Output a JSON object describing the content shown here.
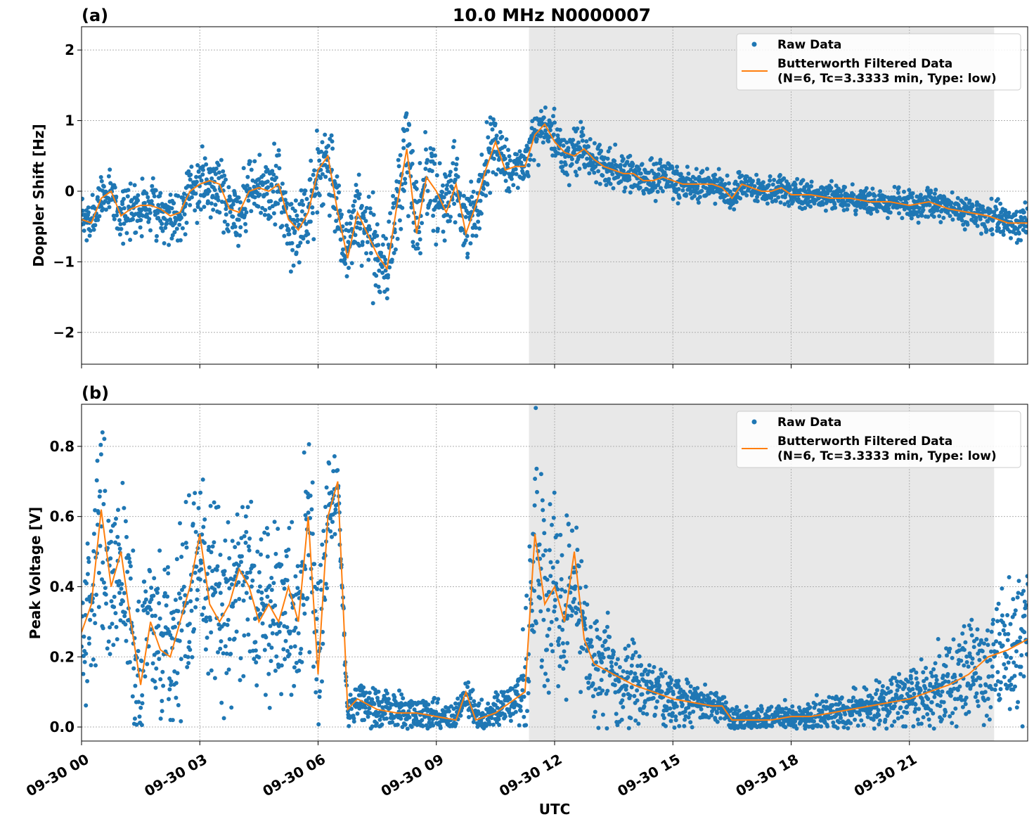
{
  "figure": {
    "title": "10.0 MHz N0000007",
    "xlabel": "UTC",
    "x_unit": "hours since 09-30 00:00 UTC",
    "xlim": [
      0,
      24
    ],
    "xticks": [
      {
        "value": 0,
        "label": "09-30 00"
      },
      {
        "value": 3,
        "label": "09-30 03"
      },
      {
        "value": 6,
        "label": "09-30 06"
      },
      {
        "value": 9,
        "label": "09-30 09"
      },
      {
        "value": 12,
        "label": "09-30 12"
      },
      {
        "value": 15,
        "label": "09-30 15"
      },
      {
        "value": 18,
        "label": "09-30 18"
      },
      {
        "value": 21,
        "label": "09-30 21"
      }
    ],
    "shaded_region": {
      "x_start": 11.35,
      "x_end": 23.15,
      "color": "#e8e8e8"
    },
    "colors": {
      "raw": "#1f77b4",
      "filtered": "#ff7f0e"
    },
    "legend": {
      "raw_label": "Raw Data",
      "filtered_label_line1": "Butterworth Filtered Data",
      "filtered_label_line2": "(N=6, Tc=3.3333 min, Type: low)",
      "placement": "upper-right"
    }
  },
  "chart_data": [
    {
      "type": "scatter",
      "panel_label": "(a)",
      "ylabel": "Doppler Shift [Hz]",
      "ylim": [
        -2.45,
        2.33
      ],
      "yticks": [
        {
          "value": -2,
          "label": "−2"
        },
        {
          "value": -1,
          "label": "−1"
        },
        {
          "value": 0,
          "label": "0"
        },
        {
          "value": 1,
          "label": "1"
        },
        {
          "value": 2,
          "label": "2"
        }
      ],
      "grid": true,
      "series": [
        {
          "name": "Butterworth Filtered Data",
          "kind": "line",
          "x": [
            0,
            0.25,
            0.5,
            0.75,
            1.0,
            1.25,
            1.5,
            1.75,
            2.0,
            2.25,
            2.5,
            2.75,
            3.0,
            3.25,
            3.5,
            3.75,
            4.0,
            4.25,
            4.5,
            4.75,
            5.0,
            5.25,
            5.5,
            5.75,
            6.0,
            6.25,
            6.5,
            6.75,
            7.0,
            7.25,
            7.5,
            7.75,
            8.0,
            8.25,
            8.5,
            8.75,
            9.0,
            9.25,
            9.5,
            9.75,
            10.0,
            10.25,
            10.5,
            10.75,
            11.0,
            11.25,
            11.5,
            11.75,
            12.0,
            12.25,
            12.5,
            12.75,
            13.0,
            13.25,
            13.5,
            13.75,
            14.0,
            14.25,
            14.5,
            14.75,
            15.0,
            15.25,
            15.5,
            15.75,
            16.0,
            16.25,
            16.5,
            16.75,
            17.0,
            17.25,
            17.5,
            17.75,
            18.0,
            18.5,
            19.0,
            19.5,
            20.0,
            20.5,
            21.0,
            21.5,
            22.0,
            22.5,
            23.0,
            23.5,
            24.0
          ],
          "y": [
            -0.4,
            -0.45,
            -0.1,
            0.0,
            -0.35,
            -0.25,
            -0.2,
            -0.2,
            -0.25,
            -0.35,
            -0.3,
            0.0,
            0.1,
            0.15,
            0.1,
            -0.25,
            -0.3,
            0.0,
            0.05,
            0.0,
            0.1,
            -0.4,
            -0.55,
            -0.3,
            0.3,
            0.5,
            -0.3,
            -0.95,
            -0.3,
            -0.6,
            -0.9,
            -1.1,
            -0.2,
            0.6,
            -0.6,
            0.2,
            0.0,
            -0.3,
            0.1,
            -0.6,
            -0.2,
            0.3,
            0.7,
            0.3,
            0.35,
            0.35,
            0.8,
            0.95,
            0.7,
            0.55,
            0.5,
            0.6,
            0.45,
            0.35,
            0.3,
            0.25,
            0.25,
            0.15,
            0.15,
            0.2,
            0.15,
            0.1,
            0.1,
            0.1,
            0.1,
            0.05,
            -0.1,
            0.1,
            0.05,
            0.0,
            0.0,
            0.05,
            -0.05,
            -0.05,
            -0.1,
            -0.1,
            -0.15,
            -0.15,
            -0.2,
            -0.15,
            -0.25,
            -0.3,
            -0.35,
            -0.45,
            -0.45
          ]
        },
        {
          "name": "Raw Data",
          "kind": "points",
          "spread": 0.28,
          "spread_variable": [
            [
              0,
              0.25
            ],
            [
              6,
              0.45
            ],
            [
              7,
              0.55
            ],
            [
              8,
              0.6
            ],
            [
              9,
              0.55
            ],
            [
              10,
              0.45
            ],
            [
              11,
              0.25
            ],
            [
              12,
              0.3
            ],
            [
              14,
              0.22
            ],
            [
              16,
              0.18
            ],
            [
              18,
              0.15
            ],
            [
              22,
              0.18
            ],
            [
              24,
              0.2
            ]
          ]
        }
      ]
    },
    {
      "type": "scatter",
      "panel_label": "(b)",
      "ylabel": "Peak Voltage [V]",
      "ylim": [
        -0.04,
        0.92
      ],
      "yticks": [
        {
          "value": 0.0,
          "label": "0.0"
        },
        {
          "value": 0.2,
          "label": "0.2"
        },
        {
          "value": 0.4,
          "label": "0.4"
        },
        {
          "value": 0.6,
          "label": "0.6"
        },
        {
          "value": 0.8,
          "label": "0.8"
        }
      ],
      "grid": true,
      "series": [
        {
          "name": "Butterworth Filtered Data",
          "kind": "line",
          "x": [
            0,
            0.25,
            0.5,
            0.75,
            1.0,
            1.25,
            1.5,
            1.75,
            2.0,
            2.25,
            2.5,
            2.75,
            3.0,
            3.25,
            3.5,
            3.75,
            4.0,
            4.25,
            4.5,
            4.75,
            5.0,
            5.25,
            5.5,
            5.75,
            6.0,
            6.25,
            6.5,
            6.75,
            7.0,
            7.5,
            8.0,
            8.5,
            9.0,
            9.5,
            9.75,
            10.0,
            10.5,
            11.0,
            11.25,
            11.5,
            11.75,
            12.0,
            12.25,
            12.5,
            12.75,
            13.0,
            13.5,
            14.0,
            14.5,
            15.0,
            15.5,
            16.0,
            16.25,
            16.5,
            17.0,
            17.5,
            18.0,
            18.5,
            19.0,
            19.5,
            20.0,
            20.5,
            21.0,
            21.5,
            22.0,
            22.5,
            23.0,
            23.5,
            24.0
          ],
          "y": [
            0.27,
            0.35,
            0.62,
            0.4,
            0.5,
            0.3,
            0.12,
            0.3,
            0.22,
            0.2,
            0.3,
            0.4,
            0.55,
            0.35,
            0.3,
            0.35,
            0.45,
            0.4,
            0.3,
            0.35,
            0.3,
            0.4,
            0.3,
            0.6,
            0.15,
            0.6,
            0.7,
            0.05,
            0.08,
            0.05,
            0.04,
            0.04,
            0.03,
            0.02,
            0.1,
            0.02,
            0.04,
            0.08,
            0.1,
            0.55,
            0.35,
            0.4,
            0.3,
            0.5,
            0.25,
            0.18,
            0.15,
            0.12,
            0.1,
            0.08,
            0.07,
            0.06,
            0.06,
            0.02,
            0.02,
            0.02,
            0.03,
            0.03,
            0.04,
            0.05,
            0.06,
            0.07,
            0.08,
            0.1,
            0.12,
            0.15,
            0.2,
            0.22,
            0.25
          ]
        },
        {
          "name": "Raw Data",
          "kind": "points",
          "spread": 0.15,
          "spread_variable": [
            [
              0,
              0.2
            ],
            [
              6,
              0.22
            ],
            [
              6.6,
              0.05
            ],
            [
              11,
              0.04
            ],
            [
              11.4,
              0.25
            ],
            [
              13,
              0.15
            ],
            [
              15,
              0.06
            ],
            [
              16.3,
              0.03
            ],
            [
              18,
              0.03
            ],
            [
              20,
              0.05
            ],
            [
              22,
              0.1
            ],
            [
              24,
              0.18
            ]
          ]
        }
      ]
    }
  ]
}
